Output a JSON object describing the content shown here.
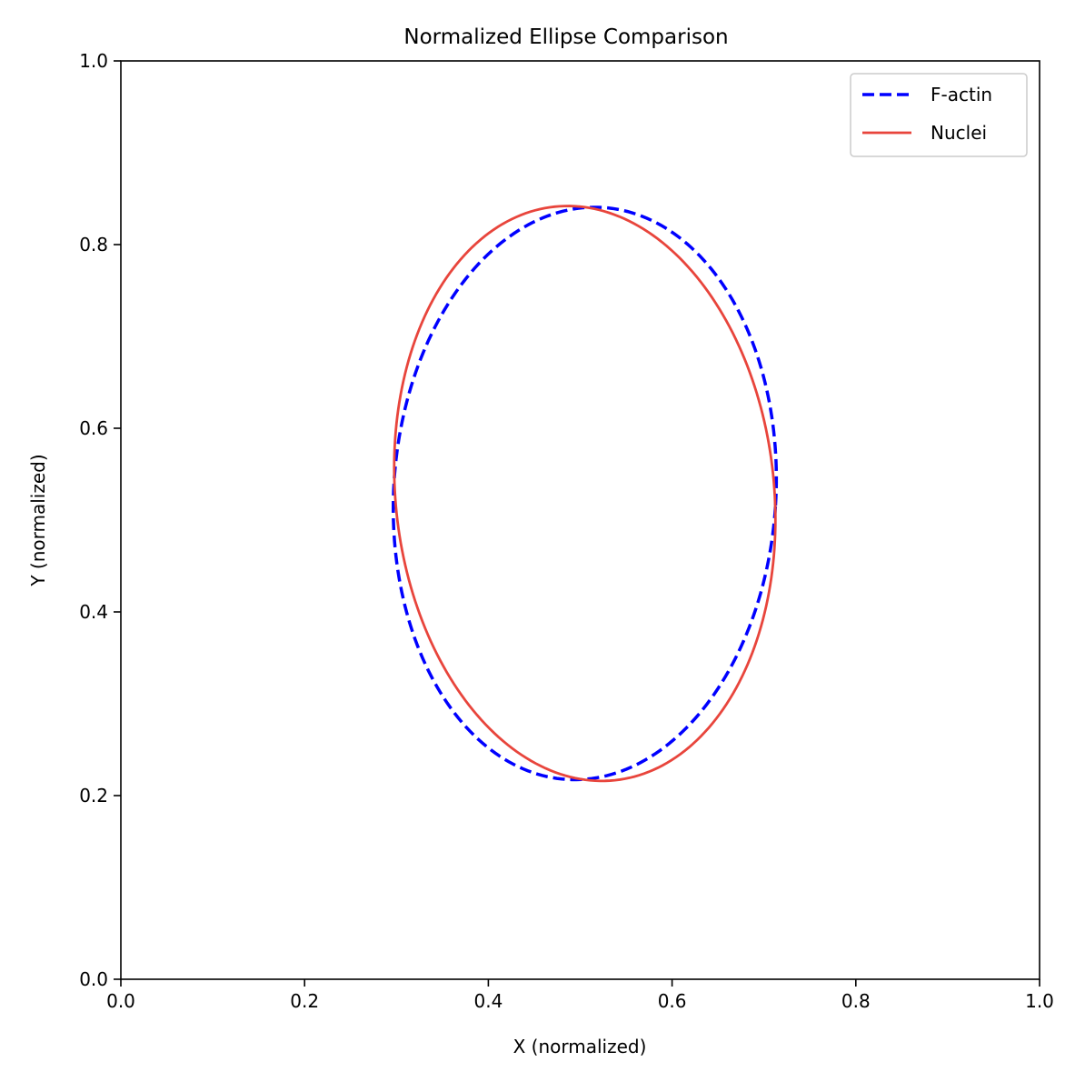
{
  "chart_data": {
    "type": "line",
    "title": "Normalized Ellipse Comparison",
    "xlabel": "X (normalized)",
    "ylabel": "Y (normalized)",
    "xlim": [
      0.0,
      1.0
    ],
    "ylim": [
      0.0,
      1.0
    ],
    "xticks": [
      "0.0",
      "0.2",
      "0.4",
      "0.6",
      "0.8",
      "1.0"
    ],
    "yticks": [
      "0.0",
      "0.2",
      "0.4",
      "0.6",
      "0.8",
      "1.0"
    ],
    "grid": false,
    "legend_position": "top-right",
    "series": [
      {
        "name": "F-actin",
        "style": "dashed",
        "color": "#0000ff",
        "shape": "ellipse",
        "center": [
          0.505,
          0.529
        ],
        "semi_axis_x": 0.208,
        "semi_axis_y": 0.312,
        "rotation_deg": 3.6
      },
      {
        "name": "Nuclei",
        "style": "solid",
        "color": "#e8453c",
        "shape": "ellipse",
        "center": [
          0.505,
          0.529
        ],
        "semi_axis_x": 0.206,
        "semi_axis_y": 0.314,
        "rotation_deg": -6.0
      }
    ]
  }
}
